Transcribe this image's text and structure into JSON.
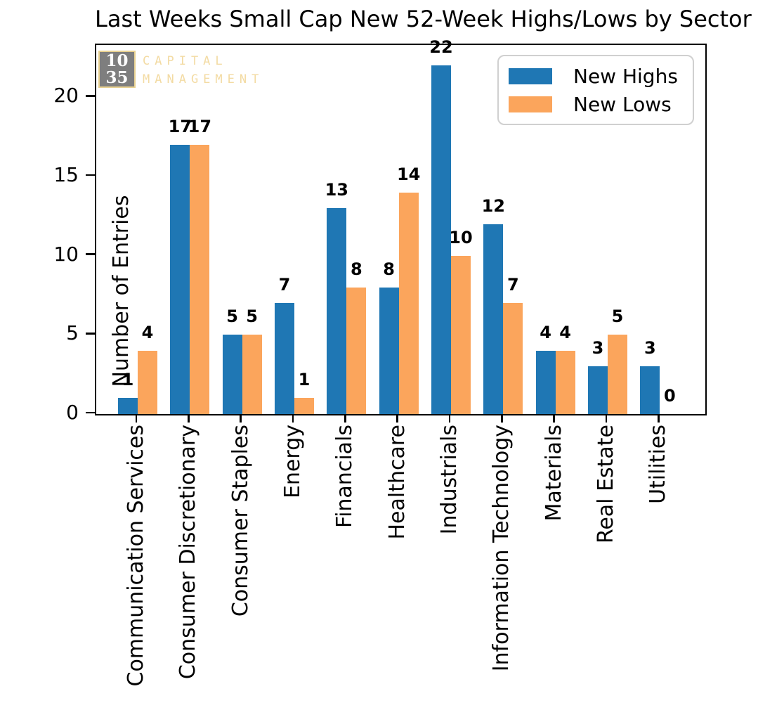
{
  "chart_data": {
    "type": "bar",
    "title": "Last Weeks Small Cap New 52-Week Highs/Lows by Sector",
    "xlabel": "",
    "ylabel": "Number of Entries",
    "categories": [
      "Communication Services",
      "Consumer Discretionary",
      "Consumer Staples",
      "Energy",
      "Financials",
      "Healthcare",
      "Industrials",
      "Information Technology",
      "Materials",
      "Real Estate",
      "Utilities"
    ],
    "series": [
      {
        "name": "New Highs",
        "color": "#1f77b4",
        "values": [
          1,
          17,
          5,
          7,
          13,
          8,
          22,
          12,
          4,
          3,
          3
        ]
      },
      {
        "name": "New Lows",
        "color": "#fba55c",
        "values": [
          4,
          17,
          5,
          1,
          8,
          14,
          10,
          7,
          4,
          5,
          0
        ]
      }
    ],
    "yticks": [
      0,
      5,
      10,
      15,
      20
    ],
    "ylim": [
      0,
      23.3
    ],
    "bar_value_labels": true,
    "grid": false,
    "legend_position": "upper right"
  },
  "watermark": {
    "box_line1": "10",
    "box_line2": "35",
    "text_line1": "CAPITAL",
    "text_line2": "MANAGEMENT",
    "box_color": "#7e7e7e",
    "text_color": "#f3dba3",
    "border_color": "#e8d190"
  },
  "colors": {
    "new_highs": "#1f77b4",
    "new_lows": "#fba55c",
    "axis": "#000000",
    "background": "#ffffff",
    "legend_border": "#d0d0d0"
  }
}
